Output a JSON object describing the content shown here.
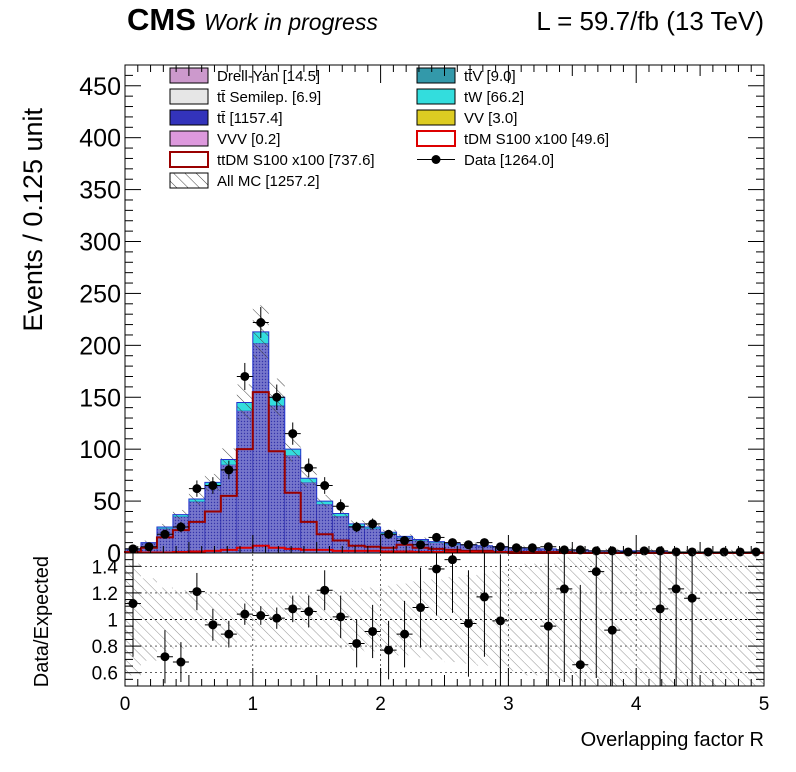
{
  "header": {
    "cms": "CMS",
    "work": "Work in progress",
    "lumi": "L = 59.7/fb (13 TeV)"
  },
  "chart_data": [
    {
      "type": "histogram",
      "ylabel": "Events / 0.125 unit",
      "ylim": [
        0,
        470
      ],
      "yticks": [
        0,
        50,
        100,
        150,
        200,
        250,
        300,
        350,
        400,
        450
      ],
      "xlim": [
        0,
        5
      ],
      "bin_width": 0.125,
      "legend": [
        {
          "label": "Drell-Yan [14.5]",
          "color": "#cc99cc",
          "style": "box"
        },
        {
          "label": "tt̄V [9.0]",
          "color": "#3399aa",
          "style": "box"
        },
        {
          "label": "tt̄ Semilep. [6.9]",
          "color": "#e6e6e6",
          "style": "box"
        },
        {
          "label": "tW [66.2]",
          "color": "#33dddd",
          "style": "box"
        },
        {
          "label": "tt̄ [1157.4]",
          "color": "#3333bb",
          "style": "box"
        },
        {
          "label": "VV [3.0]",
          "color": "#ddcc22",
          "style": "box"
        },
        {
          "label": "VVV [0.2]",
          "color": "#dd99dd",
          "style": "box"
        },
        {
          "label": "tDM S100 x100 [49.6]",
          "color": "#dd0000",
          "style": "line"
        },
        {
          "label": "ttDM S100 x100 [737.6]",
          "color": "#990000",
          "style": "line"
        },
        {
          "label": "Data [1264.0]",
          "color": "#000000",
          "style": "marker"
        },
        {
          "label": "All MC [1257.2]",
          "color": "#555555",
          "style": "hatch"
        }
      ],
      "series": [
        {
          "name": "All MC [1257.2]",
          "values": [
            4,
            10,
            25,
            37,
            52,
            68,
            90,
            145,
            213,
            150,
            100,
            72,
            50,
            38,
            28,
            25,
            20,
            16,
            13,
            11,
            9,
            8,
            7,
            6,
            5,
            4,
            4,
            3,
            3,
            2,
            2,
            2,
            2,
            1,
            1,
            1,
            1,
            1,
            1,
            1
          ]
        },
        {
          "name": "tW [66.2]",
          "values": [
            0,
            0.5,
            1.5,
            2,
            2.5,
            3.5,
            5,
            8,
            11,
            8,
            6,
            4,
            3,
            2.5,
            2,
            1.5,
            1.5,
            1,
            1,
            1,
            1,
            0.5,
            0.5,
            0.5,
            0.5,
            0.5,
            0,
            0,
            0,
            0,
            0,
            0,
            0,
            0,
            0,
            0,
            0,
            0,
            0,
            0
          ]
        },
        {
          "name": "ttDM S100 x100 [737.6]",
          "values": [
            1,
            5,
            15,
            22,
            30,
            40,
            55,
            100,
            155,
            98,
            58,
            30,
            18,
            12,
            7,
            6,
            5,
            8,
            5,
            4,
            3,
            2,
            2,
            1,
            1,
            1,
            1,
            1,
            0,
            0,
            0,
            0,
            0,
            0,
            0,
            0,
            0,
            0,
            0,
            0
          ]
        },
        {
          "name": "tDM S100 x100 [49.6]",
          "values": [
            0.5,
            0.5,
            0.5,
            1,
            1.5,
            2,
            3,
            5,
            7,
            5,
            4,
            3,
            3,
            2,
            2,
            2,
            1.5,
            1.5,
            1,
            1,
            1,
            1,
            0.5,
            0.5,
            0,
            0,
            0,
            0,
            0,
            0,
            0,
            0,
            0,
            0,
            0,
            0,
            0,
            0,
            0,
            0
          ]
        },
        {
          "name": "Data [1264.0]",
          "values": [
            4,
            6,
            18,
            25,
            62,
            65,
            80,
            170,
            222,
            150,
            115,
            82,
            65,
            45,
            25,
            28,
            18,
            12,
            8,
            15,
            10,
            8,
            10,
            6,
            5,
            5,
            6,
            3,
            3,
            2,
            2,
            1,
            2,
            2,
            1,
            1,
            1,
            1,
            1,
            1
          ]
        }
      ]
    },
    {
      "type": "scatter",
      "xlabel": "Overlapping factor R",
      "ylabel": "Data/Expected",
      "ylim": [
        0.5,
        1.5
      ],
      "yticks": [
        0.6,
        0.8,
        1,
        1.2,
        1.4
      ],
      "xlim": [
        0,
        5
      ],
      "xticks": [
        0,
        1,
        2,
        3,
        4,
        5
      ],
      "grid": true,
      "points": [
        {
          "x": 0.0625,
          "y": 1.12,
          "err": 0.4
        },
        {
          "x": 0.3125,
          "y": 0.72,
          "err": 0.2
        },
        {
          "x": 0.4375,
          "y": 0.68,
          "err": 0.15
        },
        {
          "x": 0.5625,
          "y": 1.21,
          "err": 0.14
        },
        {
          "x": 0.6875,
          "y": 0.96,
          "err": 0.12
        },
        {
          "x": 0.8125,
          "y": 0.89,
          "err": 0.1
        },
        {
          "x": 0.9375,
          "y": 1.04,
          "err": 0.08
        },
        {
          "x": 1.0625,
          "y": 1.03,
          "err": 0.07
        },
        {
          "x": 1.1875,
          "y": 1.01,
          "err": 0.08
        },
        {
          "x": 1.3125,
          "y": 1.08,
          "err": 0.1
        },
        {
          "x": 1.4375,
          "y": 1.06,
          "err": 0.12
        },
        {
          "x": 1.5625,
          "y": 1.22,
          "err": 0.15
        },
        {
          "x": 1.6875,
          "y": 1.02,
          "err": 0.16
        },
        {
          "x": 1.8125,
          "y": 0.82,
          "err": 0.18
        },
        {
          "x": 1.9375,
          "y": 0.91,
          "err": 0.2
        },
        {
          "x": 2.0625,
          "y": 0.77,
          "err": 0.22
        },
        {
          "x": 2.1875,
          "y": 0.89,
          "err": 0.25
        },
        {
          "x": 2.3125,
          "y": 1.09,
          "err": 0.3
        },
        {
          "x": 2.4375,
          "y": 1.38,
          "err": 0.35
        },
        {
          "x": 2.5625,
          "y": 1.45,
          "err": 0.4
        },
        {
          "x": 2.6875,
          "y": 0.97,
          "err": 0.4
        },
        {
          "x": 2.8125,
          "y": 1.17,
          "err": 0.45
        },
        {
          "x": 2.9375,
          "y": 0.99,
          "err": 0.5
        },
        {
          "x": 3.3125,
          "y": 0.95,
          "err": 0.6
        },
        {
          "x": 3.4375,
          "y": 1.23,
          "err": 0.7
        },
        {
          "x": 3.5625,
          "y": 0.66,
          "err": 0.6
        },
        {
          "x": 3.6875,
          "y": 1.36,
          "err": 0.8
        },
        {
          "x": 3.8125,
          "y": 0.92,
          "err": 0.7
        },
        {
          "x": 4.1875,
          "y": 1.08,
          "err": 0.8
        },
        {
          "x": 4.3125,
          "y": 1.23,
          "err": 0.9
        },
        {
          "x": 4.4375,
          "y": 1.16,
          "err": 0.9
        }
      ]
    }
  ]
}
